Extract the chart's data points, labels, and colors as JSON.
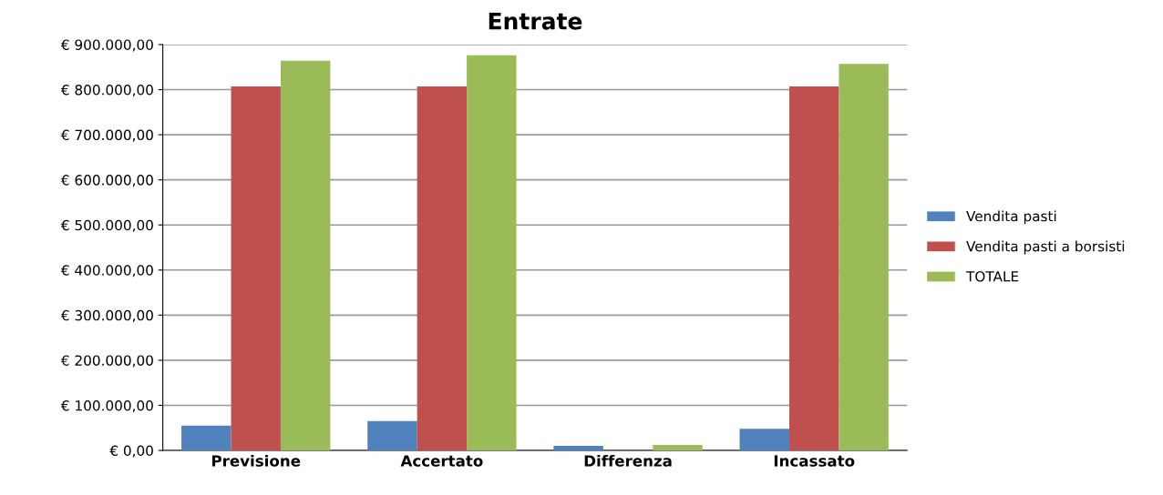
{
  "chart_data": {
    "type": "bar",
    "title": "Entrate",
    "categories": [
      "Previsione",
      "Accertato",
      "Differenza",
      "Incassato"
    ],
    "series": [
      {
        "name": "Vendita pasti",
        "color": "#4f81bd",
        "values": [
          55000,
          65000,
          10000,
          48000
        ]
      },
      {
        "name": "Vendita pasti a borsisti",
        "color": "#c0504d",
        "values": [
          807000,
          807000,
          null,
          807000
        ]
      },
      {
        "name": "TOTALE",
        "color": "#9bbb59",
        "values": [
          864000,
          876000,
          12000,
          857000
        ]
      }
    ],
    "ylim": [
      0,
      900000
    ],
    "yticks": [
      {
        "value": 0,
        "label": "€ 0,00"
      },
      {
        "value": 100000,
        "label": "€ 100.000,00"
      },
      {
        "value": 200000,
        "label": "€ 200.000,00"
      },
      {
        "value": 300000,
        "label": "€ 300.000,00"
      },
      {
        "value": 400000,
        "label": "€ 400.000,00"
      },
      {
        "value": 500000,
        "label": "€ 500.000,00"
      },
      {
        "value": 600000,
        "label": "€ 600.000,00"
      },
      {
        "value": 700000,
        "label": "€ 700.000,00"
      },
      {
        "value": 800000,
        "label": "€ 800.000,00"
      },
      {
        "value": 900000,
        "label": "€ 900.000,00"
      }
    ],
    "grid": "y",
    "legend": "right"
  }
}
